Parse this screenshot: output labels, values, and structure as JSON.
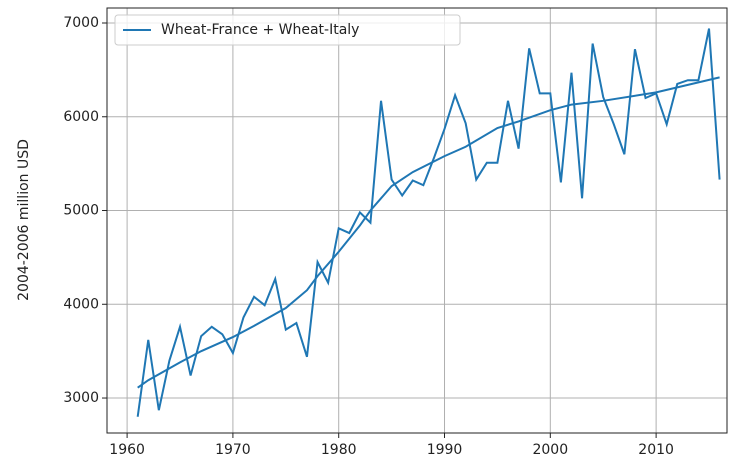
{
  "chart_data": {
    "type": "line",
    "y_label": "2004-2006 million USD",
    "series": [
      {
        "name": "Wheat-France + Wheat-Italy",
        "color": "#1f77b4",
        "x": [
          1961,
          1962,
          1963,
          1964,
          1965,
          1966,
          1967,
          1968,
          1969,
          1970,
          1971,
          1972,
          1973,
          1974,
          1975,
          1976,
          1977,
          1978,
          1979,
          1980,
          1981,
          1982,
          1983,
          1984,
          1985,
          1986,
          1987,
          1988,
          1989,
          1990,
          1991,
          1992,
          1993,
          1994,
          1995,
          1996,
          1997,
          1998,
          1999,
          2000,
          2001,
          2002,
          2003,
          2004,
          2005,
          2006,
          2007,
          2008,
          2009,
          2010,
          2011,
          2012,
          2013,
          2014,
          2015,
          2016
        ],
        "values": [
          2800,
          3620,
          2870,
          3400,
          3760,
          3240,
          3660,
          3760,
          3680,
          3480,
          3860,
          4080,
          3990,
          4270,
          3730,
          3800,
          3440,
          4450,
          4230,
          4810,
          4760,
          4980,
          4870,
          6170,
          5330,
          5160,
          5320,
          5270,
          5560,
          5870,
          6230,
          5930,
          5330,
          5510,
          5510,
          6170,
          5660,
          6730,
          6250,
          6250,
          5300,
          6470,
          5130,
          6780,
          6210,
          5920,
          5600,
          6720,
          6200,
          6250,
          5920,
          6350,
          6390,
          6390,
          6940,
          5330
        ]
      },
      {
        "color": "#1f77b4",
        "x": [
          1961,
          1962,
          1965,
          1967,
          1970,
          1972,
          1975,
          1977,
          1978,
          1980,
          1982,
          1983,
          1985,
          1987,
          1990,
          1992,
          1995,
          1997,
          2000,
          2002,
          2005,
          2010,
          2016
        ],
        "values": [
          3110,
          3190,
          3380,
          3500,
          3650,
          3770,
          3960,
          4150,
          4300,
          4560,
          4840,
          5000,
          5260,
          5410,
          5580,
          5680,
          5880,
          5950,
          6070,
          6130,
          6170,
          6260,
          6420
        ]
      }
    ],
    "xlim": [
      1958.1,
      2016.7
    ],
    "ylim": [
      2627,
      7160
    ],
    "xticks": [
      1960,
      1970,
      1980,
      1990,
      2000,
      2010
    ],
    "yticks": [
      3000,
      4000,
      5000,
      6000,
      7000
    ],
    "grid": true,
    "legend": "upper left"
  }
}
